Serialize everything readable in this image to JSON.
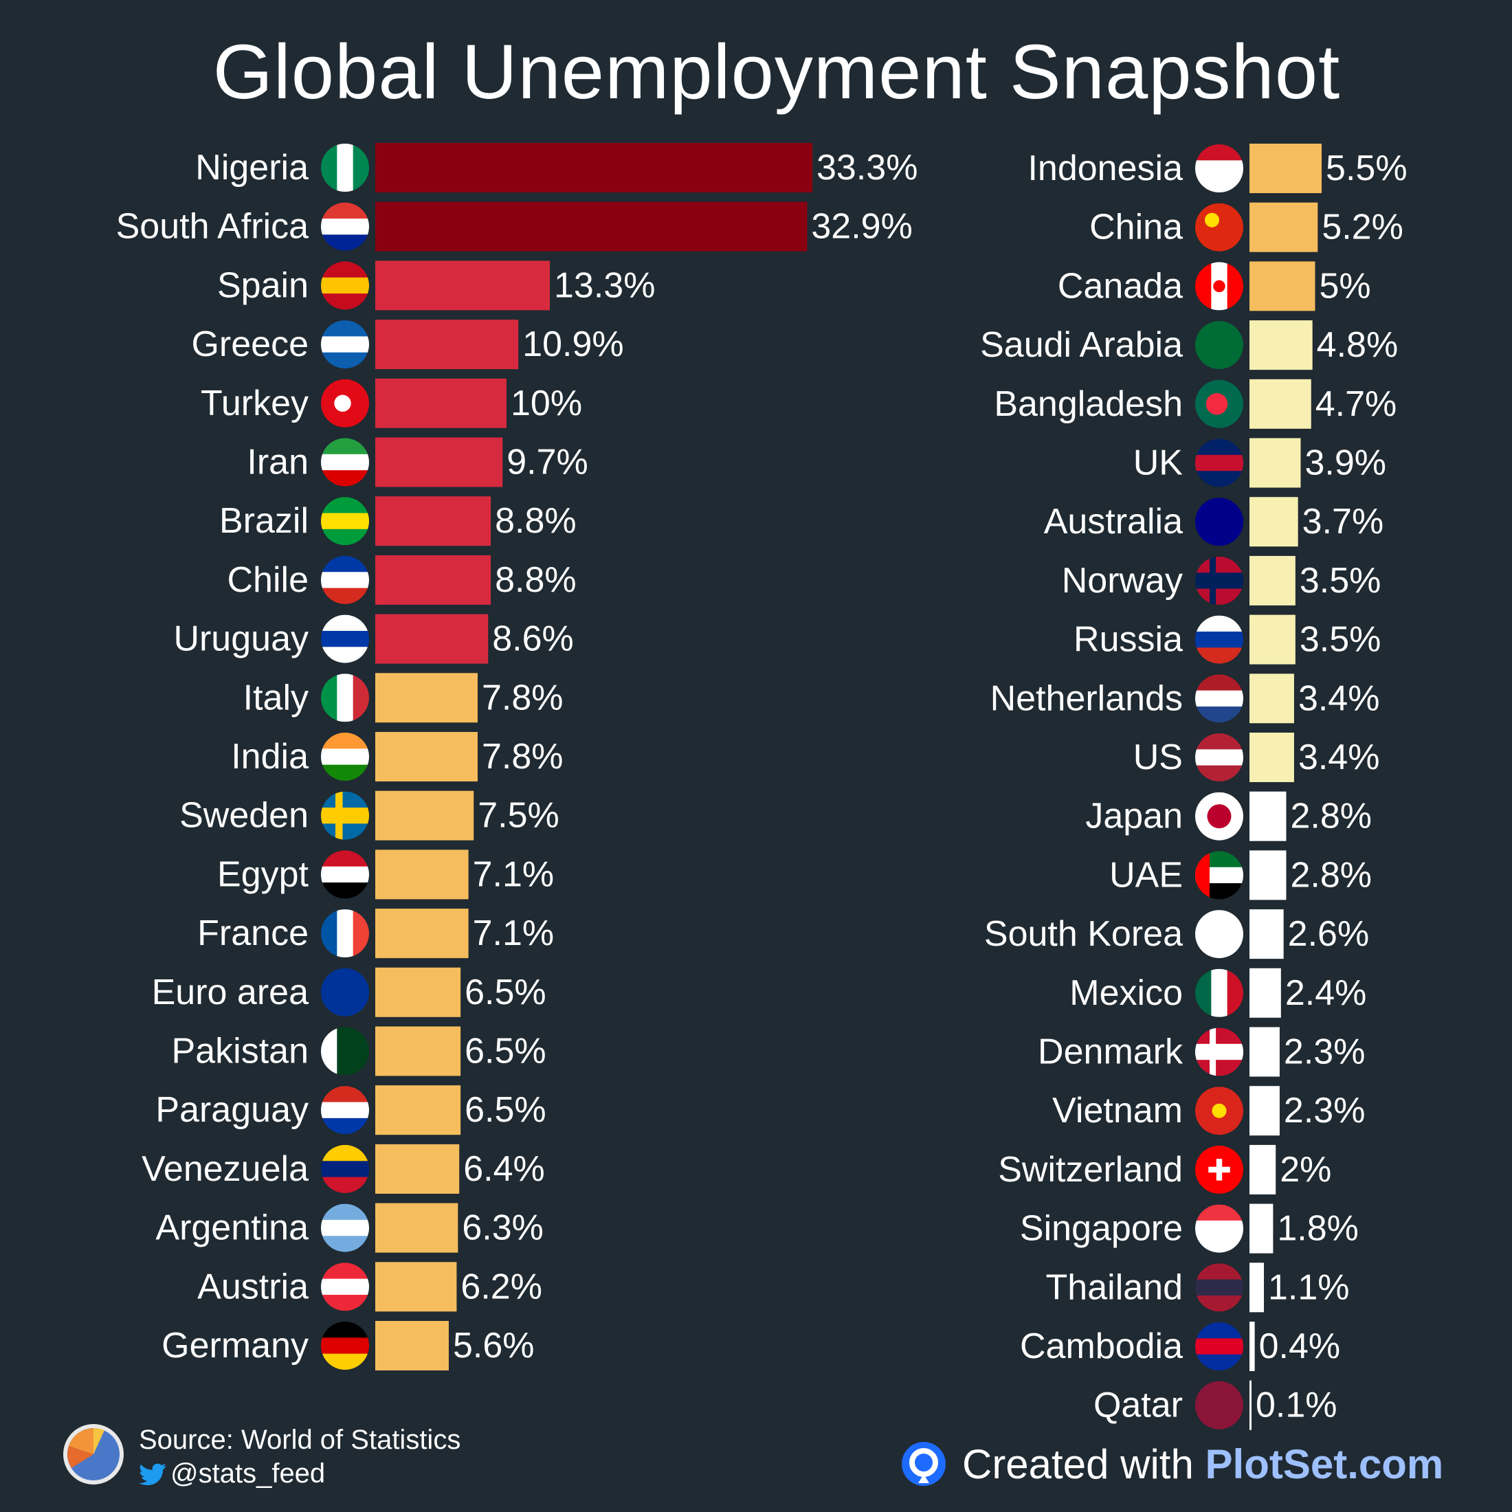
{
  "title": "Global Unemployment Snapshot",
  "colors": {
    "background": "#1f2a32",
    "tier_top": "#8b0011",
    "tier_high": "#d72a3e",
    "tier_mid": "#f5bd5d",
    "tier_low": "#f7f0b2",
    "tier_lowest": "#ffffff",
    "text": "#ffffff"
  },
  "chart_data": {
    "type": "bar",
    "orientation": "horizontal",
    "title": "Global Unemployment Snapshot",
    "value_format": "percent",
    "columns": [
      {
        "categories": [
          "Nigeria",
          "South Africa",
          "Spain",
          "Greece",
          "Turkey",
          "Iran",
          "Brazil",
          "Chile",
          "Uruguay",
          "Italy",
          "India",
          "Sweden",
          "Egypt",
          "France",
          "Euro area",
          "Pakistan",
          "Paraguay",
          "Venezuela",
          "Argentina",
          "Austria",
          "Germany"
        ],
        "values": [
          33.3,
          32.9,
          13.3,
          10.9,
          10,
          9.7,
          8.8,
          8.8,
          8.6,
          7.8,
          7.8,
          7.5,
          7.1,
          7.1,
          6.5,
          6.5,
          6.5,
          6.4,
          6.3,
          6.2,
          5.6
        ],
        "labels": [
          "33.3%",
          "32.9%",
          "13.3%",
          "10.9%",
          "10%",
          "9.7%",
          "8.8%",
          "8.8%",
          "8.6%",
          "7.8%",
          "7.8%",
          "7.5%",
          "7.1%",
          "7.1%",
          "6.5%",
          "6.5%",
          "6.5%",
          "6.4%",
          "6.3%",
          "6.2%",
          "5.6%"
        ]
      },
      {
        "categories": [
          "Indonesia",
          "China",
          "Canada",
          "Saudi Arabia",
          "Bangladesh",
          "UK",
          "Australia",
          "Norway",
          "Russia",
          "Netherlands",
          "US",
          "Japan",
          "UAE",
          "South Korea",
          "Mexico",
          "Denmark",
          "Vietnam",
          "Switzerland",
          "Singapore",
          "Thailand",
          "Cambodia",
          "Qatar"
        ],
        "values": [
          5.5,
          5.2,
          5,
          4.8,
          4.7,
          3.9,
          3.7,
          3.5,
          3.5,
          3.4,
          3.4,
          2.8,
          2.8,
          2.6,
          2.4,
          2.3,
          2.3,
          2,
          1.8,
          1.1,
          0.4,
          0.1
        ],
        "labels": [
          "5.5%",
          "5.2%",
          "5%",
          "4.8%",
          "4.7%",
          "3.9%",
          "3.7%",
          "3.5%",
          "3.5%",
          "3.4%",
          "3.4%",
          "2.8%",
          "2.8%",
          "2.6%",
          "2.4%",
          "2.3%",
          "2.3%",
          "2%",
          "1.8%",
          "1.1%",
          "0.4%",
          "0.1%"
        ]
      }
    ],
    "color_tiers": [
      {
        "min": 20,
        "color": "#8b0011"
      },
      {
        "min": 8,
        "color": "#d72a3e"
      },
      {
        "min": 5,
        "color": "#f5bd5d"
      },
      {
        "min": 3,
        "color": "#f7f0b2"
      },
      {
        "min": 0,
        "color": "#ffffff"
      }
    ]
  },
  "footer": {
    "source": "Source: World of Statistics",
    "handle": "@stats_feed",
    "created_prefix": "Created with ",
    "brand": "PlotSet.com"
  }
}
